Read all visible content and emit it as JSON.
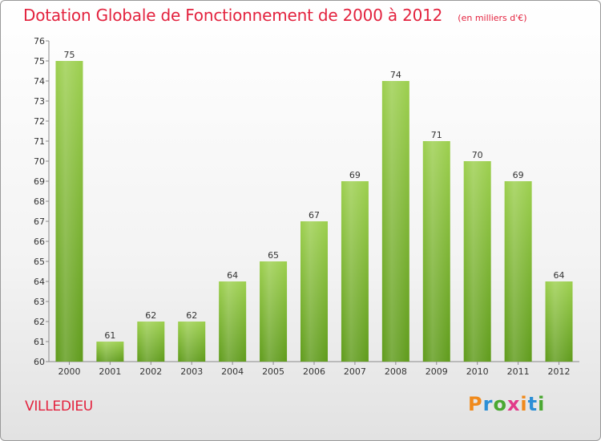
{
  "header": {
    "title": "Dotation Globale de Fonctionnement de 2000 à 2012",
    "subtitle": "(en milliers d'€)"
  },
  "footer": {
    "place": "VILLEDIEU",
    "logo_text": "Proxiti"
  },
  "colors": {
    "title": "#e3223e",
    "bar_top": "#9ccf4e",
    "bar_bottom": "#5f9b1b"
  },
  "chart_data": {
    "type": "bar",
    "title": "Dotation Globale de Fonctionnement de 2000 à 2012",
    "subtitle": "(en milliers d'€)",
    "categories": [
      "2000",
      "2001",
      "2002",
      "2003",
      "2004",
      "2005",
      "2006",
      "2007",
      "2008",
      "2009",
      "2010",
      "2011",
      "2012"
    ],
    "values": [
      75,
      61,
      62,
      62,
      64,
      65,
      67,
      69,
      74,
      71,
      70,
      69,
      64
    ],
    "ylim": [
      60,
      76
    ],
    "yticks": [
      60,
      61,
      62,
      63,
      64,
      65,
      66,
      67,
      68,
      69,
      70,
      71,
      72,
      73,
      74,
      75,
      76
    ],
    "grid": false,
    "data_labels": true
  }
}
